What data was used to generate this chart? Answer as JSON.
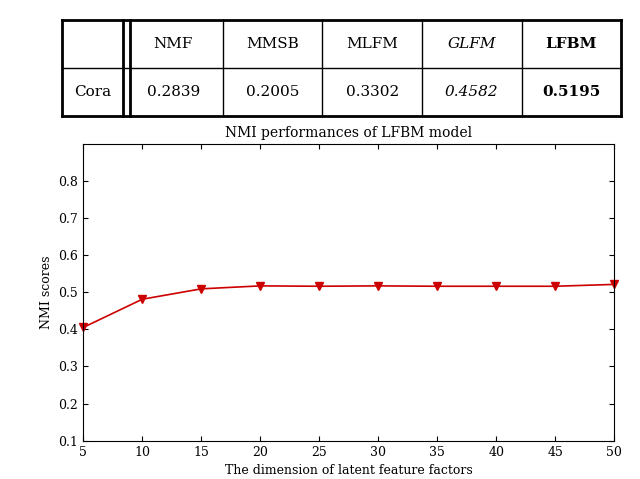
{
  "table": {
    "col_labels": [
      "NMF",
      "MMSB",
      "MLFM",
      "GLFM",
      "LFBM"
    ],
    "row_label": "Cora",
    "values": [
      "0.2839",
      "0.2005",
      "0.3302",
      "0.4582",
      "0.5195"
    ]
  },
  "plot": {
    "title": "NMI performances of LFBM model",
    "xlabel": "The dimension of latent feature factors",
    "ylabel": "NMI scores",
    "x": [
      5,
      10,
      15,
      20,
      25,
      30,
      35,
      40,
      45,
      50
    ],
    "y": [
      0.405,
      0.481,
      0.509,
      0.517,
      0.516,
      0.517,
      0.516,
      0.516,
      0.516,
      0.521
    ],
    "xlim": [
      5,
      50
    ],
    "ylim": [
      0.1,
      0.9
    ],
    "xticks": [
      5,
      10,
      15,
      20,
      25,
      30,
      35,
      40,
      45,
      50
    ],
    "yticks": [
      0.1,
      0.2,
      0.3,
      0.4,
      0.5,
      0.6,
      0.7,
      0.8
    ],
    "line_color": "#cc0000",
    "marker": "v",
    "markersize": 6,
    "linewidth": 1.2
  }
}
